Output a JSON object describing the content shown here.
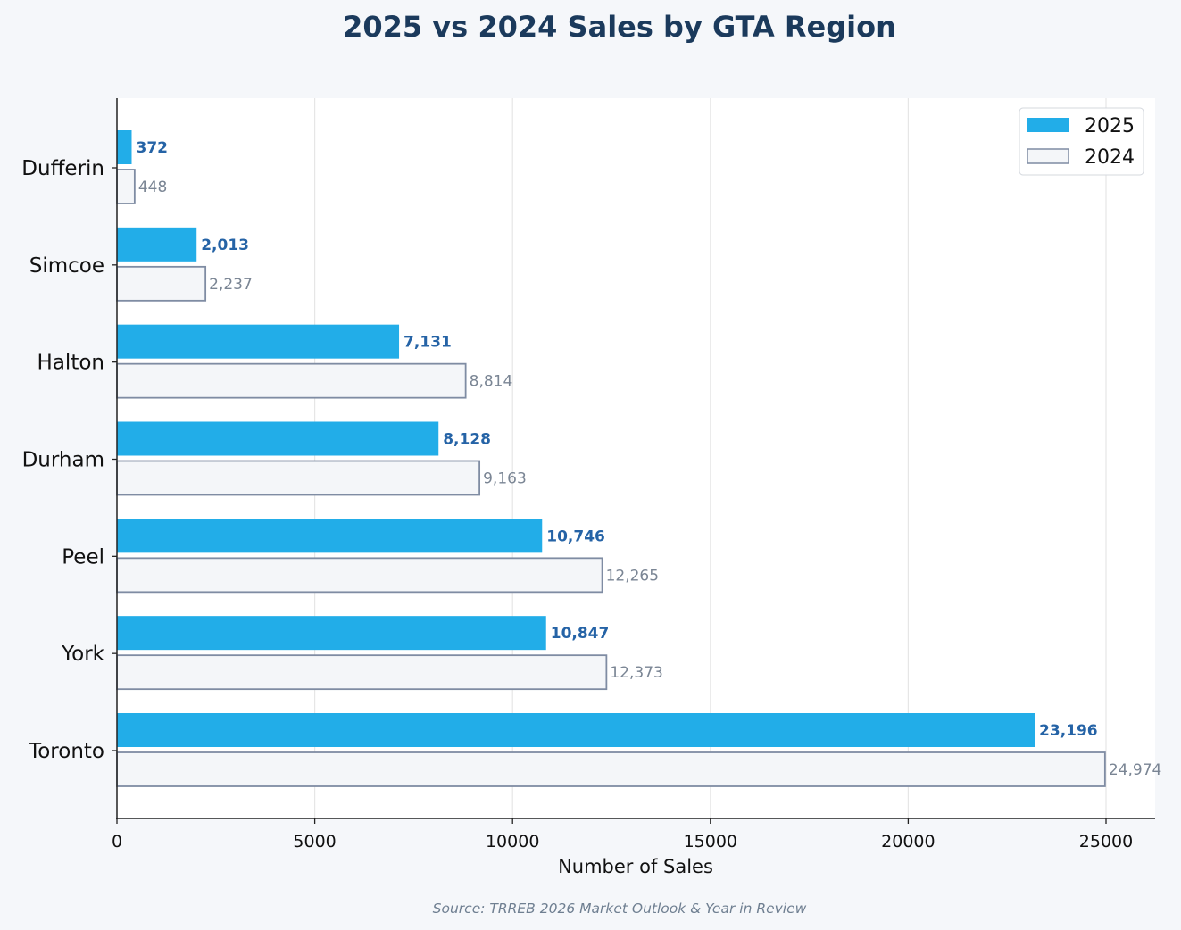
{
  "chart_data": {
    "type": "bar",
    "orientation": "horizontal",
    "title": "2025 vs 2024 Sales by GTA Region",
    "xlabel": "Number of Sales",
    "ylabel": "",
    "source": "Source: TRREB 2026 Market Outlook & Year in Review",
    "categories": [
      "Dufferin",
      "Simcoe",
      "Halton",
      "Durham",
      "Peel",
      "York",
      "Toronto"
    ],
    "series": [
      {
        "name": "2025",
        "values": [
          372,
          2013,
          7131,
          8128,
          10746,
          10847,
          23196
        ],
        "labels": [
          "372",
          "2,013",
          "7,131",
          "8,128",
          "10,746",
          "10,847",
          "23,196"
        ],
        "color": "#22ade8",
        "style": "filled"
      },
      {
        "name": "2024",
        "values": [
          448,
          2237,
          8814,
          9163,
          12265,
          12373,
          24974
        ],
        "labels": [
          "448",
          "2,237",
          "8,814",
          "9,163",
          "12,265",
          "12,373",
          "24,974"
        ],
        "color": "#f4f6f9",
        "edge_color": "#7f8ca3",
        "style": "outlined"
      }
    ],
    "xticks": [
      0,
      5000,
      10000,
      15000,
      20000,
      25000
    ],
    "xtick_labels": [
      "0",
      "5000",
      "10000",
      "15000",
      "20000",
      "25000"
    ],
    "xlim": [
      0,
      26230
    ],
    "grid": "vertical",
    "legend": "top-right"
  }
}
